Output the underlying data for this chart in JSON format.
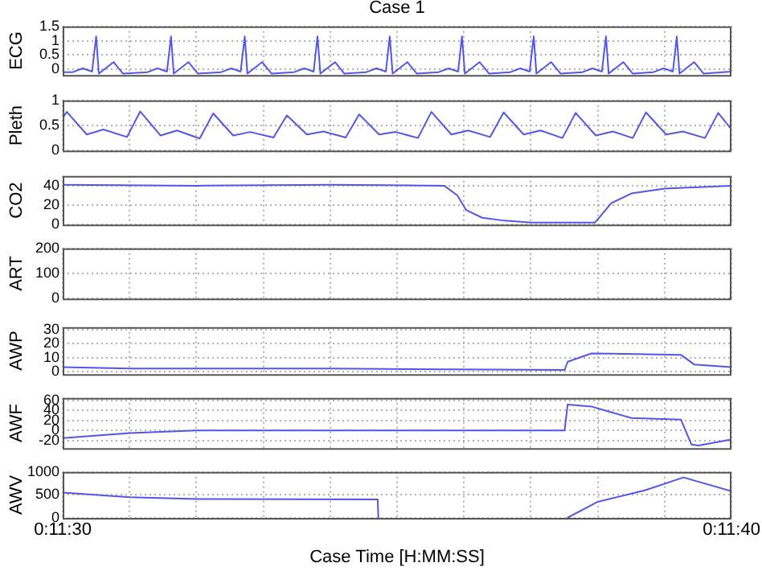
{
  "chart_data": [
    {
      "type": "line",
      "title": "Case 1",
      "ylabel": "ECG",
      "xlim": [
        0.191667,
        0.194444
      ],
      "ylim": [
        -0.2,
        1.5
      ],
      "yticks": [
        0,
        0.5,
        1,
        1.5
      ],
      "grid": true,
      "tick_labels": "y",
      "xticks": [
        {
          "value": 0.191667,
          "label": null
        },
        {
          "value": 0.191944,
          "label": null
        },
        {
          "value": 0.192222,
          "label": null
        },
        {
          "value": 0.1925,
          "label": null
        },
        {
          "value": 0.192778,
          "label": null
        },
        {
          "value": 0.193056,
          "label": null
        },
        {
          "value": 0.193333,
          "label": null
        },
        {
          "value": 0.193611,
          "label": null
        },
        {
          "value": 0.193889,
          "label": null
        },
        {
          "value": 0.194167,
          "label": null
        },
        {
          "value": 0.194444,
          "label": null
        }
      ],
      "series": [
        {
          "color": "#5555e8",
          "x": [
            0.191667,
            0.191709,
            0.19175,
            0.191789,
            0.191806,
            0.191817,
            0.191878,
            0.191917,
            0.19202,
            0.192061,
            0.1921,
            0.192117,
            0.192128,
            0.192189,
            0.192228,
            0.192325,
            0.192367,
            0.192406,
            0.192423,
            0.192434,
            0.192495,
            0.192534,
            0.192628,
            0.19267,
            0.192709,
            0.192725,
            0.192737,
            0.192798,
            0.192836,
            0.192928,
            0.19297,
            0.193009,
            0.193025,
            0.193037,
            0.193098,
            0.193137,
            0.193228,
            0.19327,
            0.193309,
            0.193325,
            0.193337,
            0.193398,
            0.193437,
            0.193526,
            0.193567,
            0.193606,
            0.193623,
            0.193634,
            0.193695,
            0.193734,
            0.193826,
            0.193867,
            0.193906,
            0.193923,
            0.193934,
            0.193995,
            0.194034,
            0.19412,
            0.194162,
            0.194201,
            0.194217,
            0.194228,
            0.194289,
            0.194328,
            0.194444
          ],
          "values": [
            -0.1,
            -0.1,
            0.03,
            -0.08,
            1.15,
            -0.15,
            0.25,
            -0.15,
            -0.1,
            0.03,
            -0.08,
            1.15,
            -0.15,
            0.25,
            -0.15,
            -0.1,
            0.03,
            -0.08,
            1.15,
            -0.15,
            0.25,
            -0.15,
            -0.1,
            0.03,
            -0.08,
            1.15,
            -0.15,
            0.25,
            -0.15,
            -0.1,
            0.03,
            -0.08,
            1.15,
            -0.15,
            0.25,
            -0.15,
            -0.1,
            0.03,
            -0.08,
            1.15,
            -0.15,
            0.25,
            -0.15,
            -0.1,
            0.03,
            -0.08,
            1.15,
            -0.15,
            0.25,
            -0.15,
            -0.1,
            0.03,
            -0.08,
            1.15,
            -0.15,
            0.25,
            -0.15,
            -0.1,
            0.03,
            -0.08,
            1.15,
            -0.15,
            0.25,
            -0.15,
            -0.08
          ]
        }
      ]
    },
    {
      "type": "line",
      "ylabel": "Pleth",
      "xlim": [
        0.191667,
        0.194444
      ],
      "ylim": [
        0,
        1
      ],
      "yticks": [
        0,
        0.5,
        1
      ],
      "grid": true,
      "tick_labels": "y",
      "xticks": [
        {
          "value": 0.191667,
          "label": null
        },
        {
          "value": 0.191944,
          "label": null
        },
        {
          "value": 0.192222,
          "label": null
        },
        {
          "value": 0.1925,
          "label": null
        },
        {
          "value": 0.192778,
          "label": null
        },
        {
          "value": 0.193056,
          "label": null
        },
        {
          "value": 0.193333,
          "label": null
        },
        {
          "value": 0.193611,
          "label": null
        },
        {
          "value": 0.193889,
          "label": null
        },
        {
          "value": 0.194167,
          "label": null
        },
        {
          "value": 0.194444,
          "label": null
        }
      ],
      "series": [
        {
          "color": "#5555e8",
          "x": [
            0.191667,
            0.191684,
            0.191767,
            0.191836,
            0.191934,
            0.191989,
            0.192073,
            0.192142,
            0.192236,
            0.192292,
            0.192375,
            0.192445,
            0.192542,
            0.192598,
            0.192681,
            0.19275,
            0.192842,
            0.192898,
            0.192981,
            0.19305,
            0.193142,
            0.193198,
            0.193281,
            0.193351,
            0.193442,
            0.193498,
            0.193581,
            0.193651,
            0.193742,
            0.193797,
            0.193881,
            0.193951,
            0.194034,
            0.194089,
            0.194173,
            0.194242,
            0.194334,
            0.194389,
            0.194444
          ],
          "values": [
            0.65,
            0.77,
            0.32,
            0.42,
            0.27,
            0.78,
            0.3,
            0.4,
            0.24,
            0.74,
            0.3,
            0.37,
            0.26,
            0.7,
            0.32,
            0.38,
            0.26,
            0.72,
            0.32,
            0.37,
            0.25,
            0.77,
            0.32,
            0.4,
            0.27,
            0.76,
            0.32,
            0.4,
            0.25,
            0.75,
            0.3,
            0.38,
            0.25,
            0.76,
            0.32,
            0.38,
            0.25,
            0.75,
            0.42
          ]
        }
      ]
    },
    {
      "type": "line",
      "ylabel": "CO2",
      "xlim": [
        0.191667,
        0.194444
      ],
      "ylim": [
        0,
        50
      ],
      "yticks": [
        0,
        20,
        40
      ],
      "grid": true,
      "tick_labels": "y",
      "xticks": [
        {
          "value": 0.191667,
          "label": null
        },
        {
          "value": 0.191944,
          "label": null
        },
        {
          "value": 0.192222,
          "label": null
        },
        {
          "value": 0.1925,
          "label": null
        },
        {
          "value": 0.192778,
          "label": null
        },
        {
          "value": 0.193056,
          "label": null
        },
        {
          "value": 0.193333,
          "label": null
        },
        {
          "value": 0.193611,
          "label": null
        },
        {
          "value": 0.193889,
          "label": null
        },
        {
          "value": 0.194167,
          "label": null
        },
        {
          "value": 0.194444,
          "label": null
        }
      ],
      "series": [
        {
          "color": "#5555e8",
          "x": [
            0.191667,
            0.192223,
            0.192778,
            0.193251,
            0.193306,
            0.193342,
            0.193409,
            0.193501,
            0.193612,
            0.193876,
            0.193884,
            0.193945,
            0.194028,
            0.194167,
            0.194444
          ],
          "values": [
            41,
            40,
            41,
            40,
            30,
            15,
            7,
            4,
            2,
            2,
            4,
            22,
            32,
            37,
            40
          ]
        }
      ]
    },
    {
      "type": "line",
      "ylabel": "ART",
      "xlim": [
        0.191667,
        0.194444
      ],
      "ylim": [
        0,
        200
      ],
      "yticks": [
        0,
        100,
        200
      ],
      "grid": true,
      "tick_labels": "y",
      "xticks": [
        {
          "value": 0.191667,
          "label": null
        },
        {
          "value": 0.191944,
          "label": null
        },
        {
          "value": 0.192222,
          "label": null
        },
        {
          "value": 0.1925,
          "label": null
        },
        {
          "value": 0.192778,
          "label": null
        },
        {
          "value": 0.193056,
          "label": null
        },
        {
          "value": 0.193333,
          "label": null
        },
        {
          "value": 0.193611,
          "label": null
        },
        {
          "value": 0.193889,
          "label": null
        },
        {
          "value": 0.194167,
          "label": null
        },
        {
          "value": 0.194444,
          "label": null
        }
      ]
    },
    {
      "type": "line",
      "ylabel": "AWP",
      "xlim": [
        0.191667,
        0.194444
      ],
      "ylim": [
        -2,
        32
      ],
      "yticks": [
        0,
        10,
        20,
        30
      ],
      "grid": true,
      "tick_labels": "y",
      "xticks": [
        {
          "value": 0.191667,
          "label": null
        },
        {
          "value": 0.191944,
          "label": null
        },
        {
          "value": 0.192222,
          "label": null
        },
        {
          "value": 0.1925,
          "label": null
        },
        {
          "value": 0.192778,
          "label": null
        },
        {
          "value": 0.193056,
          "label": null
        },
        {
          "value": 0.193333,
          "label": null
        },
        {
          "value": 0.193611,
          "label": null
        },
        {
          "value": 0.193889,
          "label": null
        },
        {
          "value": 0.194167,
          "label": null
        },
        {
          "value": 0.194444,
          "label": null
        }
      ],
      "series": [
        {
          "color": "#5555e8",
          "x": [
            0.191667,
            0.191945,
            0.192778,
            0.193751,
            0.193764,
            0.193862,
            0.194234,
            0.194289,
            0.194444
          ],
          "values": [
            3,
            2,
            2,
            1,
            7,
            13,
            12,
            5,
            3
          ]
        }
      ]
    },
    {
      "type": "line",
      "ylabel": "AWF",
      "xlim": [
        0.191667,
        0.194444
      ],
      "ylim": [
        -35,
        65
      ],
      "yticks": [
        -20,
        0,
        20,
        40,
        60
      ],
      "grid": true,
      "tick_labels": "y",
      "xticks": [
        {
          "value": 0.191667,
          "label": null
        },
        {
          "value": 0.191944,
          "label": null
        },
        {
          "value": 0.192222,
          "label": null
        },
        {
          "value": 0.1925,
          "label": null
        },
        {
          "value": 0.192778,
          "label": null
        },
        {
          "value": 0.193056,
          "label": null
        },
        {
          "value": 0.193333,
          "label": null
        },
        {
          "value": 0.193611,
          "label": null
        },
        {
          "value": 0.193889,
          "label": null
        },
        {
          "value": 0.194167,
          "label": null
        },
        {
          "value": 0.194444,
          "label": null
        }
      ],
      "series": [
        {
          "color": "#5555e8",
          "x": [
            0.191667,
            0.191945,
            0.192223,
            0.193751,
            0.193764,
            0.193862,
            0.194028,
            0.194234,
            0.194278,
            0.194306,
            0.194444
          ],
          "values": [
            -15,
            -5,
            0,
            0,
            52,
            48,
            25,
            22,
            -28,
            -30,
            -18
          ]
        }
      ]
    },
    {
      "type": "line",
      "ylabel": "AWV",
      "xlabel": "Case Time [H:MM:SS]",
      "xlim": [
        0.191667,
        0.194444
      ],
      "ylim": [
        0,
        1000
      ],
      "yticks": [
        0,
        500,
        1000
      ],
      "grid": true,
      "xticks": [
        {
          "value": 0.191667,
          "label": "0:11:30"
        },
        {
          "value": 0.191944,
          "label": null
        },
        {
          "value": 0.192222,
          "label": null
        },
        {
          "value": 0.1925,
          "label": null
        },
        {
          "value": 0.192778,
          "label": null
        },
        {
          "value": 0.193056,
          "label": null
        },
        {
          "value": 0.193333,
          "label": null
        },
        {
          "value": 0.193611,
          "label": null
        },
        {
          "value": 0.193889,
          "label": null
        },
        {
          "value": 0.194167,
          "label": null
        },
        {
          "value": 0.194444,
          "label": "0:11:40"
        }
      ],
      "series": [
        {
          "color": "#5555e8",
          "x": [
            0.191667,
            0.191945,
            0.192223,
            0.192975,
            0.192978,
            0.193334,
            0.193762,
            0.193889,
            0.194084,
            0.194245,
            0.194444
          ],
          "values": [
            550,
            450,
            410,
            400,
            0,
            null,
            0,
            350,
            600,
            880,
            580
          ]
        }
      ]
    }
  ]
}
